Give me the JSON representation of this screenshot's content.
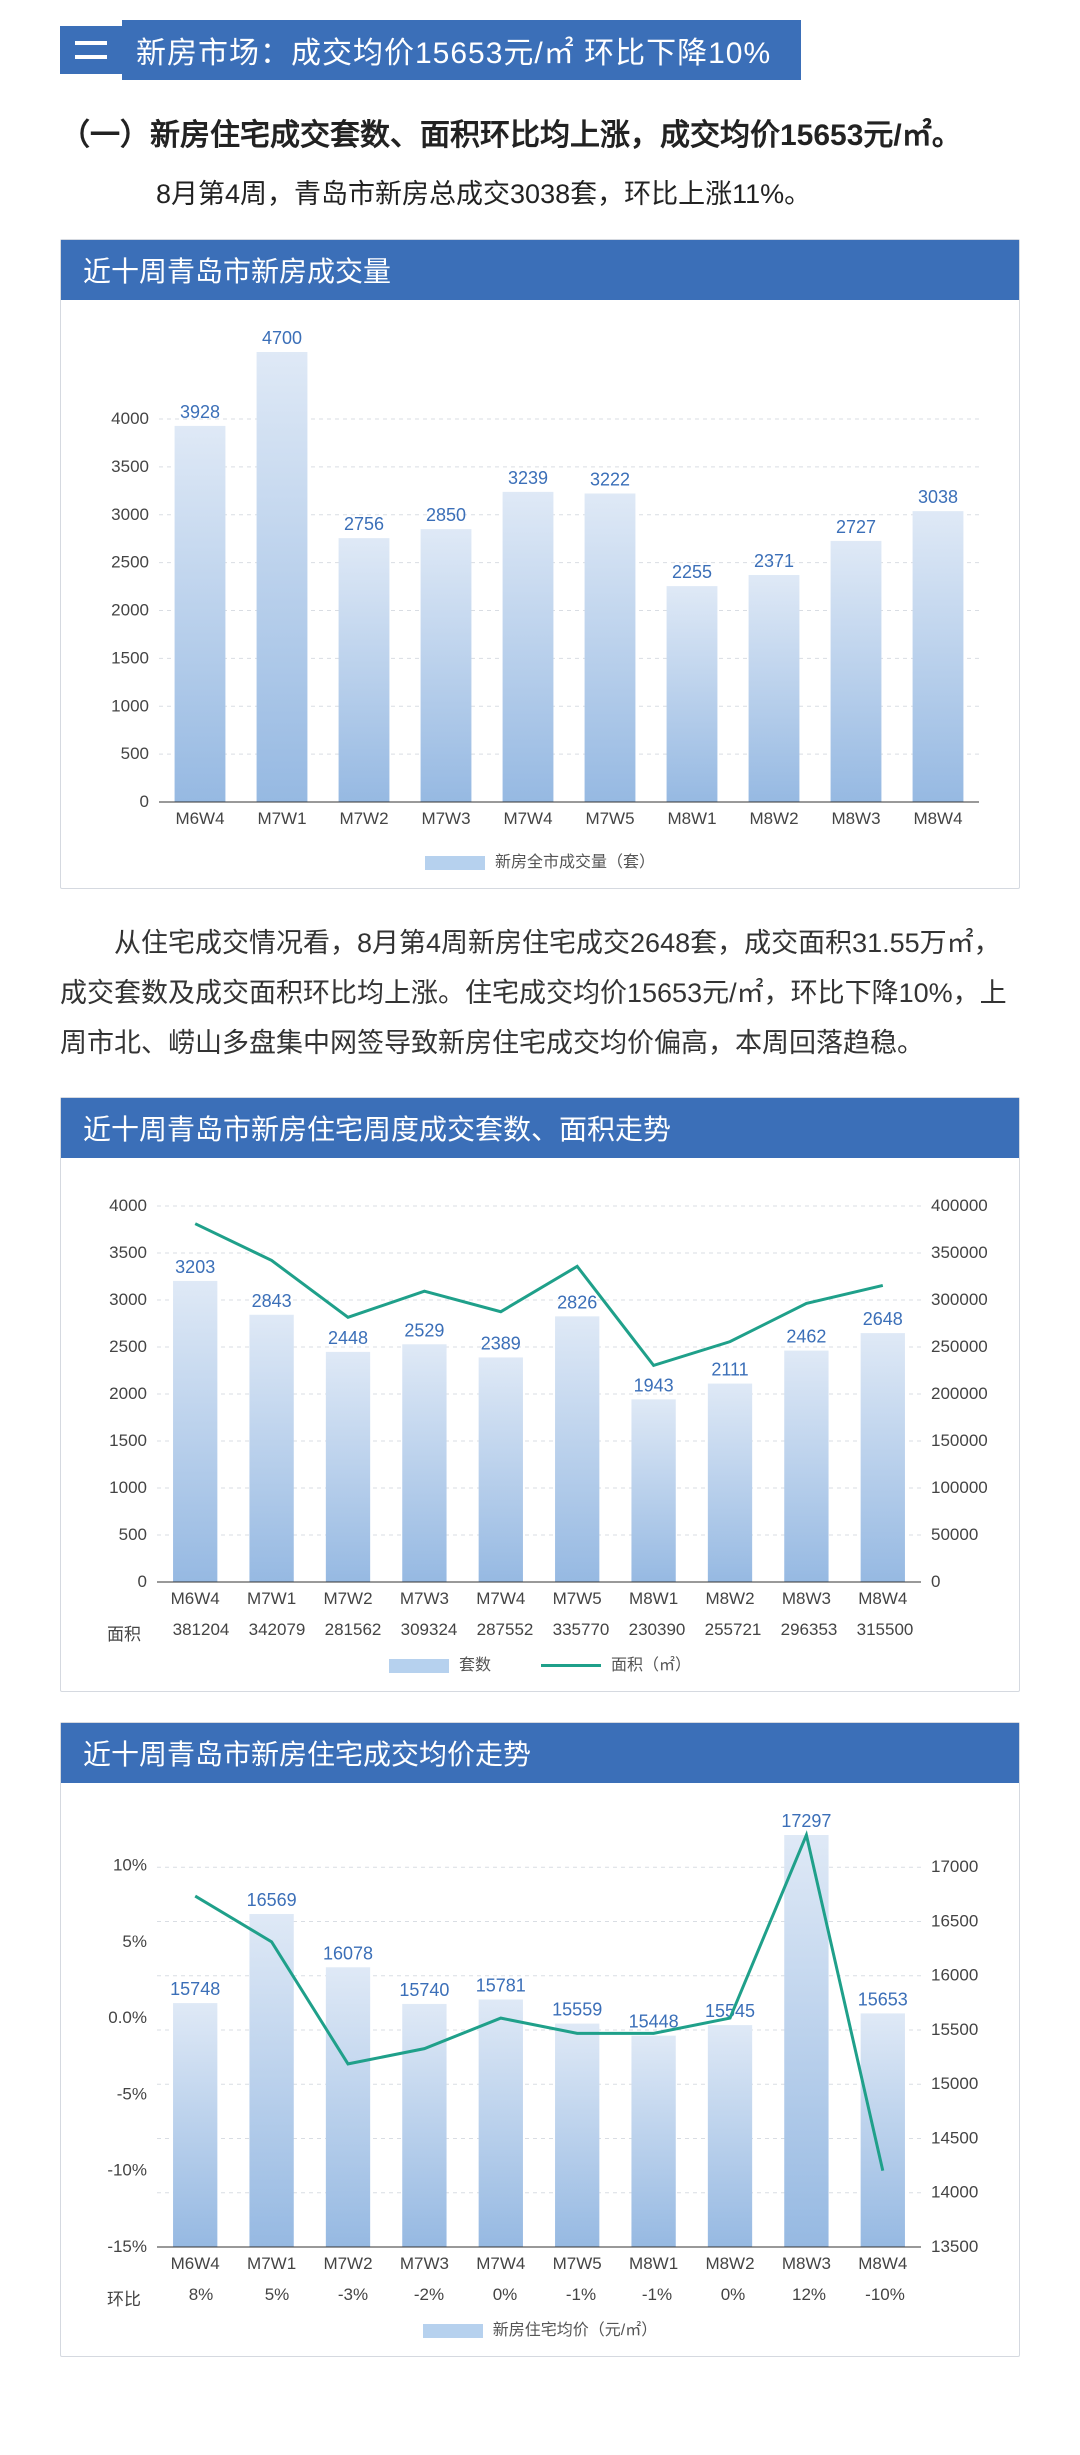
{
  "header": {
    "badge": "二",
    "title": "新房市场：成交均价15653元/㎡  环比下降10%"
  },
  "intro": {
    "heading": "（一）新房住宅成交套数、面积环比均上涨，成交均价15653元/㎡。",
    "line": "8月第4周，青岛市新房总成交3038套，环比上涨11%。"
  },
  "chart1": {
    "title": "近十周青岛市新房成交量",
    "type": "bar",
    "categories": [
      "M6W4",
      "M7W1",
      "M7W2",
      "M7W3",
      "M7W4",
      "M7W5",
      "M8W1",
      "M8W2",
      "M8W3",
      "M8W4"
    ],
    "values": [
      3928,
      4700,
      2756,
      2850,
      3239,
      3222,
      2255,
      2371,
      2727,
      3038
    ],
    "y_ticks": [
      0,
      500,
      1000,
      1500,
      2000,
      2500,
      3000,
      3500,
      4000
    ],
    "ylim": [
      0,
      4700
    ],
    "bar_fill_top": "#dfe9f6",
    "bar_fill_bottom": "#96b9e2",
    "grid_color": "#d9dde3",
    "legend": "新房全市成交量（套）",
    "axis_fontsize": 17,
    "label_fontsize": 18
  },
  "paragraph1": "从住宅成交情况看，8月第4周新房住宅成交2648套，成交面积31.55万㎡，成交套数及成交面积环比均上涨。住宅成交均价15653元/㎡，环比下降10%，上周市北、崂山多盘集中网签导致新房住宅成交均价偏高，本周回落趋稳。",
  "chart2": {
    "title": "近十周青岛市新房住宅周度成交套数、面积走势",
    "type": "bar+line",
    "categories": [
      "M6W4",
      "M7W1",
      "M7W2",
      "M7W3",
      "M7W4",
      "M7W5",
      "M8W1",
      "M8W2",
      "M8W3",
      "M8W4"
    ],
    "bar_values": [
      3203,
      2843,
      2448,
      2529,
      2389,
      2826,
      1943,
      2111,
      2462,
      2648
    ],
    "line_values": [
      381204,
      342079,
      281562,
      309324,
      287552,
      335770,
      230390,
      255721,
      296353,
      315500
    ],
    "row2_label": "面积",
    "row2_values": [
      "381204",
      "342079",
      "281562",
      "309324",
      "287552",
      "335770",
      "230390",
      "255721",
      "296353",
      "315500"
    ],
    "y_left_ticks": [
      0,
      500,
      1000,
      1500,
      2000,
      2500,
      3000,
      3500,
      4000
    ],
    "y_left_lim": [
      0,
      4000
    ],
    "y_right_ticks": [
      0,
      50000,
      100000,
      150000,
      200000,
      250000,
      300000,
      350000,
      400000
    ],
    "y_right_lim": [
      0,
      400000
    ],
    "bar_fill_top": "#dfe9f6",
    "bar_fill_bottom": "#96b9e2",
    "line_color": "#1fa08a",
    "grid_color": "#d9dde3",
    "legend_bar": "套数",
    "legend_line": "面积（㎡）",
    "axis_fontsize": 17
  },
  "chart3": {
    "title": "近十周青岛市新房住宅成交均价走势",
    "type": "bar+line",
    "categories": [
      "M6W4",
      "M7W1",
      "M7W2",
      "M7W3",
      "M7W4",
      "M7W5",
      "M8W1",
      "M8W2",
      "M8W3",
      "M8W4"
    ],
    "bar_values": [
      15748,
      16569,
      16078,
      15740,
      15781,
      15559,
      15448,
      15545,
      17297,
      15653
    ],
    "line_values_pct": [
      8,
      5,
      -3,
      -2,
      0,
      -1,
      -1,
      0,
      12,
      -10
    ],
    "row2_label": "环比",
    "row2_values": [
      "8%",
      "5%",
      "-3%",
      "-2%",
      "0%",
      "-1%",
      "-1%",
      "0%",
      "12%",
      "-10%"
    ],
    "y_left_ticks_pct": [
      -15,
      -10,
      -5,
      0,
      5,
      10
    ],
    "y_left_lim_pct": [
      -15,
      12
    ],
    "y_right_ticks": [
      13500,
      14000,
      14500,
      15000,
      15500,
      16000,
      16500,
      17000
    ],
    "y_right_lim": [
      13500,
      17297
    ],
    "bar_fill_top": "#dfe9f6",
    "bar_fill_bottom": "#96b9e2",
    "line_color": "#1fa08a",
    "grid_color": "#d9dde3",
    "legend": "新房住宅均价（元/㎡）",
    "axis_fontsize": 17
  },
  "colors": {
    "brand": "#3b6fb8",
    "teal": "#1fa08a"
  }
}
